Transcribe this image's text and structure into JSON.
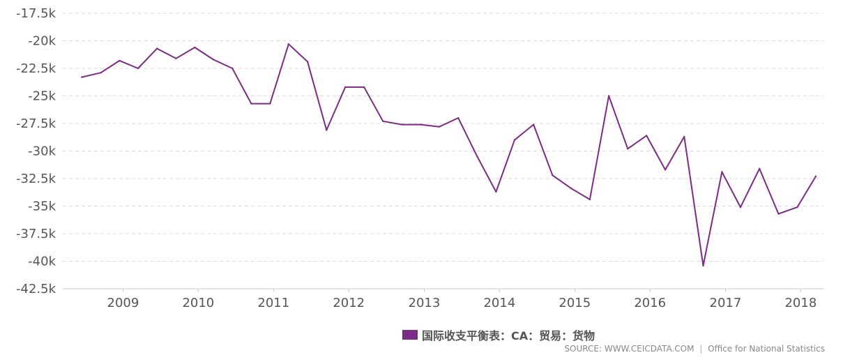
{
  "chart_data": {
    "type": "line",
    "title": "",
    "xlabel": "",
    "ylabel": "",
    "ylim": [
      -42500,
      -17500
    ],
    "yticks": [
      -17500,
      -20000,
      -22500,
      -25000,
      -27500,
      -30000,
      -32500,
      -35000,
      -37500,
      -40000,
      -42500
    ],
    "ytick_labels": [
      "-17.5k",
      "-20k",
      "-22.5k",
      "-25k",
      "-27.5k",
      "-30k",
      "-32.5k",
      "-35k",
      "-37.5k",
      "-40k",
      "-42.5k"
    ],
    "xticks": [
      "2009",
      "2010",
      "2011",
      "2012",
      "2013",
      "2014",
      "2015",
      "2016",
      "2017",
      "2018"
    ],
    "grid": true,
    "legend_position": "bottom",
    "series": [
      {
        "name": "国际收支平衡表：CA：贸易：货物",
        "color": "#7b2a85",
        "x": [
          "2008-06",
          "2008-09",
          "2008-12",
          "2009-03",
          "2009-06",
          "2009-09",
          "2009-12",
          "2010-03",
          "2010-06",
          "2010-09",
          "2010-12",
          "2011-03",
          "2011-06",
          "2011-09",
          "2011-12",
          "2012-03",
          "2012-06",
          "2012-09",
          "2012-12",
          "2013-03",
          "2013-06",
          "2013-09",
          "2013-12",
          "2014-03",
          "2014-06",
          "2014-09",
          "2014-12",
          "2015-03",
          "2015-06",
          "2015-09",
          "2015-12",
          "2016-03",
          "2016-06",
          "2016-09",
          "2016-12",
          "2017-03",
          "2017-06",
          "2017-09",
          "2017-12",
          "2018-03"
        ],
        "values": [
          -23300,
          -22900,
          -21800,
          -22500,
          -20700,
          -21600,
          -20600,
          -21700,
          -22500,
          -25700,
          -25700,
          -20300,
          -21900,
          -28100,
          -24200,
          -24200,
          -27300,
          -27600,
          -27600,
          -27800,
          -27000,
          -30500,
          -33700,
          -29000,
          -27600,
          -32200,
          -33400,
          -34400,
          -25000,
          -29800,
          -28600,
          -31700,
          -28700,
          -40400,
          -31900,
          -35100,
          -31600,
          -35700,
          -35100,
          -32300
        ]
      }
    ]
  },
  "legend": {
    "label": "国际收支平衡表：CA：贸易：货物",
    "color": "#7b2a85"
  },
  "source": {
    "left": "SOURCE: WWW.CEICDATA.COM",
    "separator": "|",
    "right": "Office for National Statistics"
  }
}
